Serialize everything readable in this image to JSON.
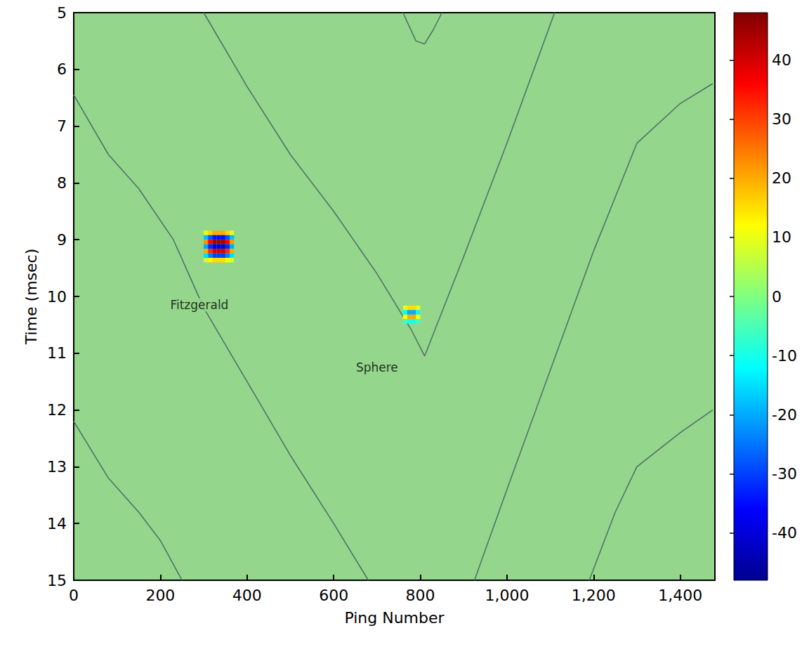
{
  "chart_data": {
    "type": "heatmap",
    "xlabel": "Ping Number",
    "ylabel": "Time (msec)",
    "xlim": [
      0,
      1480
    ],
    "xticks": [
      0,
      200,
      400,
      600,
      800,
      1000,
      1200,
      1400
    ],
    "ylim": [
      15,
      5
    ],
    "yticks": [
      5,
      6,
      7,
      8,
      9,
      10,
      11,
      12,
      13,
      14,
      15
    ],
    "grid": false,
    "colorbar": {
      "range": [
        -48,
        48
      ],
      "ticks": [
        -40,
        -30,
        -20,
        -10,
        0,
        10,
        20,
        30,
        40
      ]
    },
    "cells": [
      {
        "x": [
          305,
          315,
          325,
          335,
          345,
          355,
          365
        ],
        "y": [
          8.88,
          8.96,
          9.04,
          9.12,
          9.2,
          9.28,
          9.36
        ],
        "values": [
          [
            10,
            16,
            20,
            20,
            20,
            16,
            10
          ],
          [
            -18,
            -28,
            -35,
            -35,
            -35,
            -28,
            -18
          ],
          [
            22,
            36,
            45,
            45,
            45,
            36,
            22
          ],
          [
            -20,
            -32,
            -40,
            -40,
            -40,
            -32,
            -20
          ],
          [
            20,
            32,
            40,
            40,
            40,
            32,
            20
          ],
          [
            -15,
            -24,
            -30,
            -30,
            -30,
            -24,
            -15
          ],
          [
            8,
            12,
            15,
            15,
            15,
            12,
            8
          ]
        ]
      },
      {
        "x": [
          765,
          775,
          785,
          795
        ],
        "y": [
          10.2,
          10.28,
          10.36,
          10.44
        ],
        "values": [
          [
            9,
            15,
            15,
            9
          ],
          [
            -12,
            -20,
            -20,
            -12
          ],
          [
            12,
            20,
            20,
            12
          ],
          [
            -6,
            -10,
            -10,
            -6
          ]
        ]
      }
    ],
    "traces": [
      {
        "color": "#4d6f66",
        "x": [
          0,
          80,
          150,
          230,
          300,
          400,
          500,
          600,
          680
        ],
        "values": [
          6.45,
          7.5,
          8.1,
          9.0,
          10.2,
          11.5,
          12.8,
          14.0,
          15.0
        ]
      },
      {
        "color": "#4d6f66",
        "x": [
          0,
          80,
          150,
          200,
          250
        ],
        "values": [
          12.2,
          13.2,
          13.8,
          14.3,
          15.0
        ]
      },
      {
        "color": "#4d6f66",
        "x": [
          300,
          400,
          500,
          600,
          700,
          780,
          810,
          900,
          1000,
          1110
        ],
        "values": [
          5.0,
          6.3,
          7.5,
          8.5,
          9.6,
          10.6,
          11.05,
          9.3,
          7.3,
          5.0
        ]
      },
      {
        "color": "#4d6f66",
        "x": [
          760,
          790,
          810,
          830,
          850
        ],
        "values": [
          5.0,
          5.5,
          5.55,
          5.3,
          5.0
        ]
      },
      {
        "color": "#4d6f66",
        "x": [
          925,
          1000,
          1100,
          1200,
          1300,
          1400,
          1475
        ],
        "values": [
          15.0,
          13.4,
          11.3,
          9.2,
          7.3,
          6.6,
          6.25
        ]
      },
      {
        "color": "#4d6f66",
        "x": [
          1190,
          1250,
          1300,
          1400,
          1475
        ],
        "values": [
          15.0,
          13.8,
          13.0,
          12.4,
          12.0
        ]
      }
    ],
    "annotations": [
      {
        "text": "Fitzgerald",
        "x": 290,
        "y": 10.15
      },
      {
        "text": "Sphere",
        "x": 700,
        "y": 11.25
      }
    ]
  }
}
